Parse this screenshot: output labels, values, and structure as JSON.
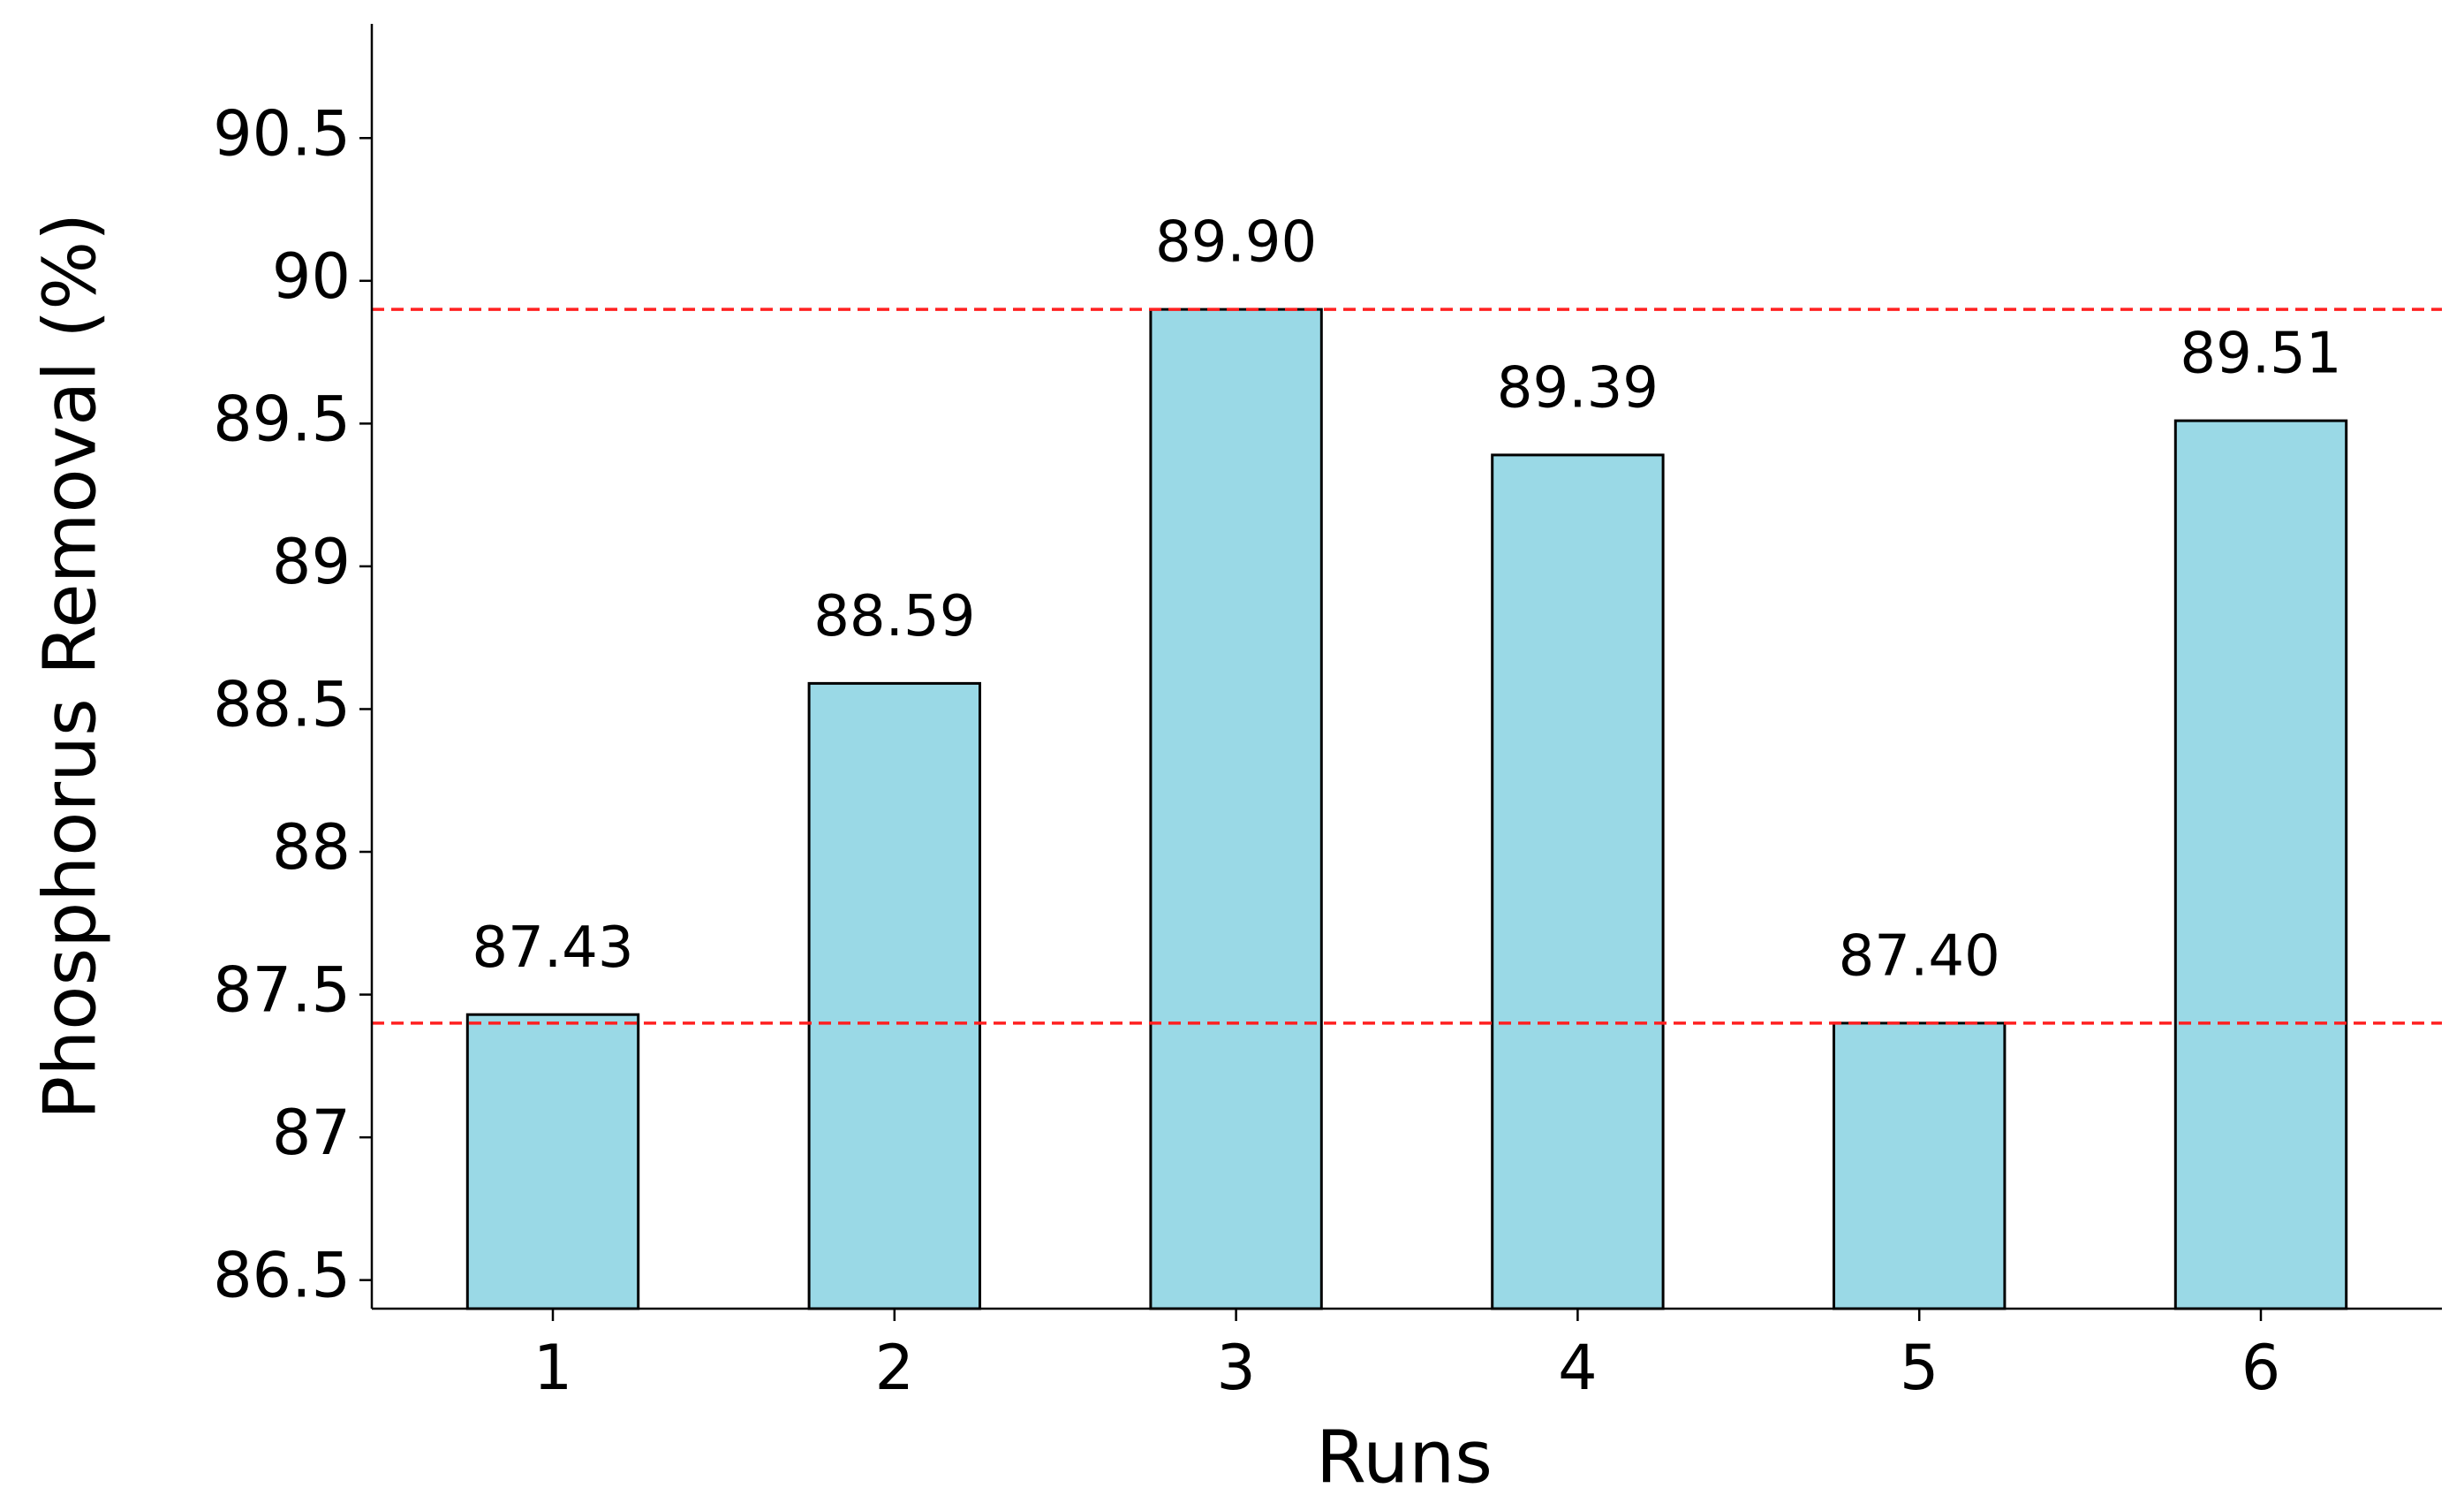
{
  "chart_data": {
    "type": "bar",
    "xlabel": "Runs",
    "ylabel": "Phosphorus Removal (%)",
    "categories": [
      "1",
      "2",
      "3",
      "4",
      "5",
      "6"
    ],
    "values": [
      87.43,
      88.59,
      89.9,
      89.39,
      87.4,
      89.51
    ],
    "value_labels": [
      "87.43",
      "88.59",
      "89.90",
      "89.39",
      "87.40",
      "89.51"
    ],
    "color": "#9ad9e6",
    "edgecolor": "#000000",
    "ylim": [
      86.4,
      90.9
    ],
    "yticks": [
      86.5,
      87,
      87.5,
      88,
      88.5,
      89,
      89.5,
      90,
      90.5
    ],
    "reference_lines": [
      89.9,
      87.4
    ],
    "reference_line_color": "#ff2020",
    "grid": false
  }
}
